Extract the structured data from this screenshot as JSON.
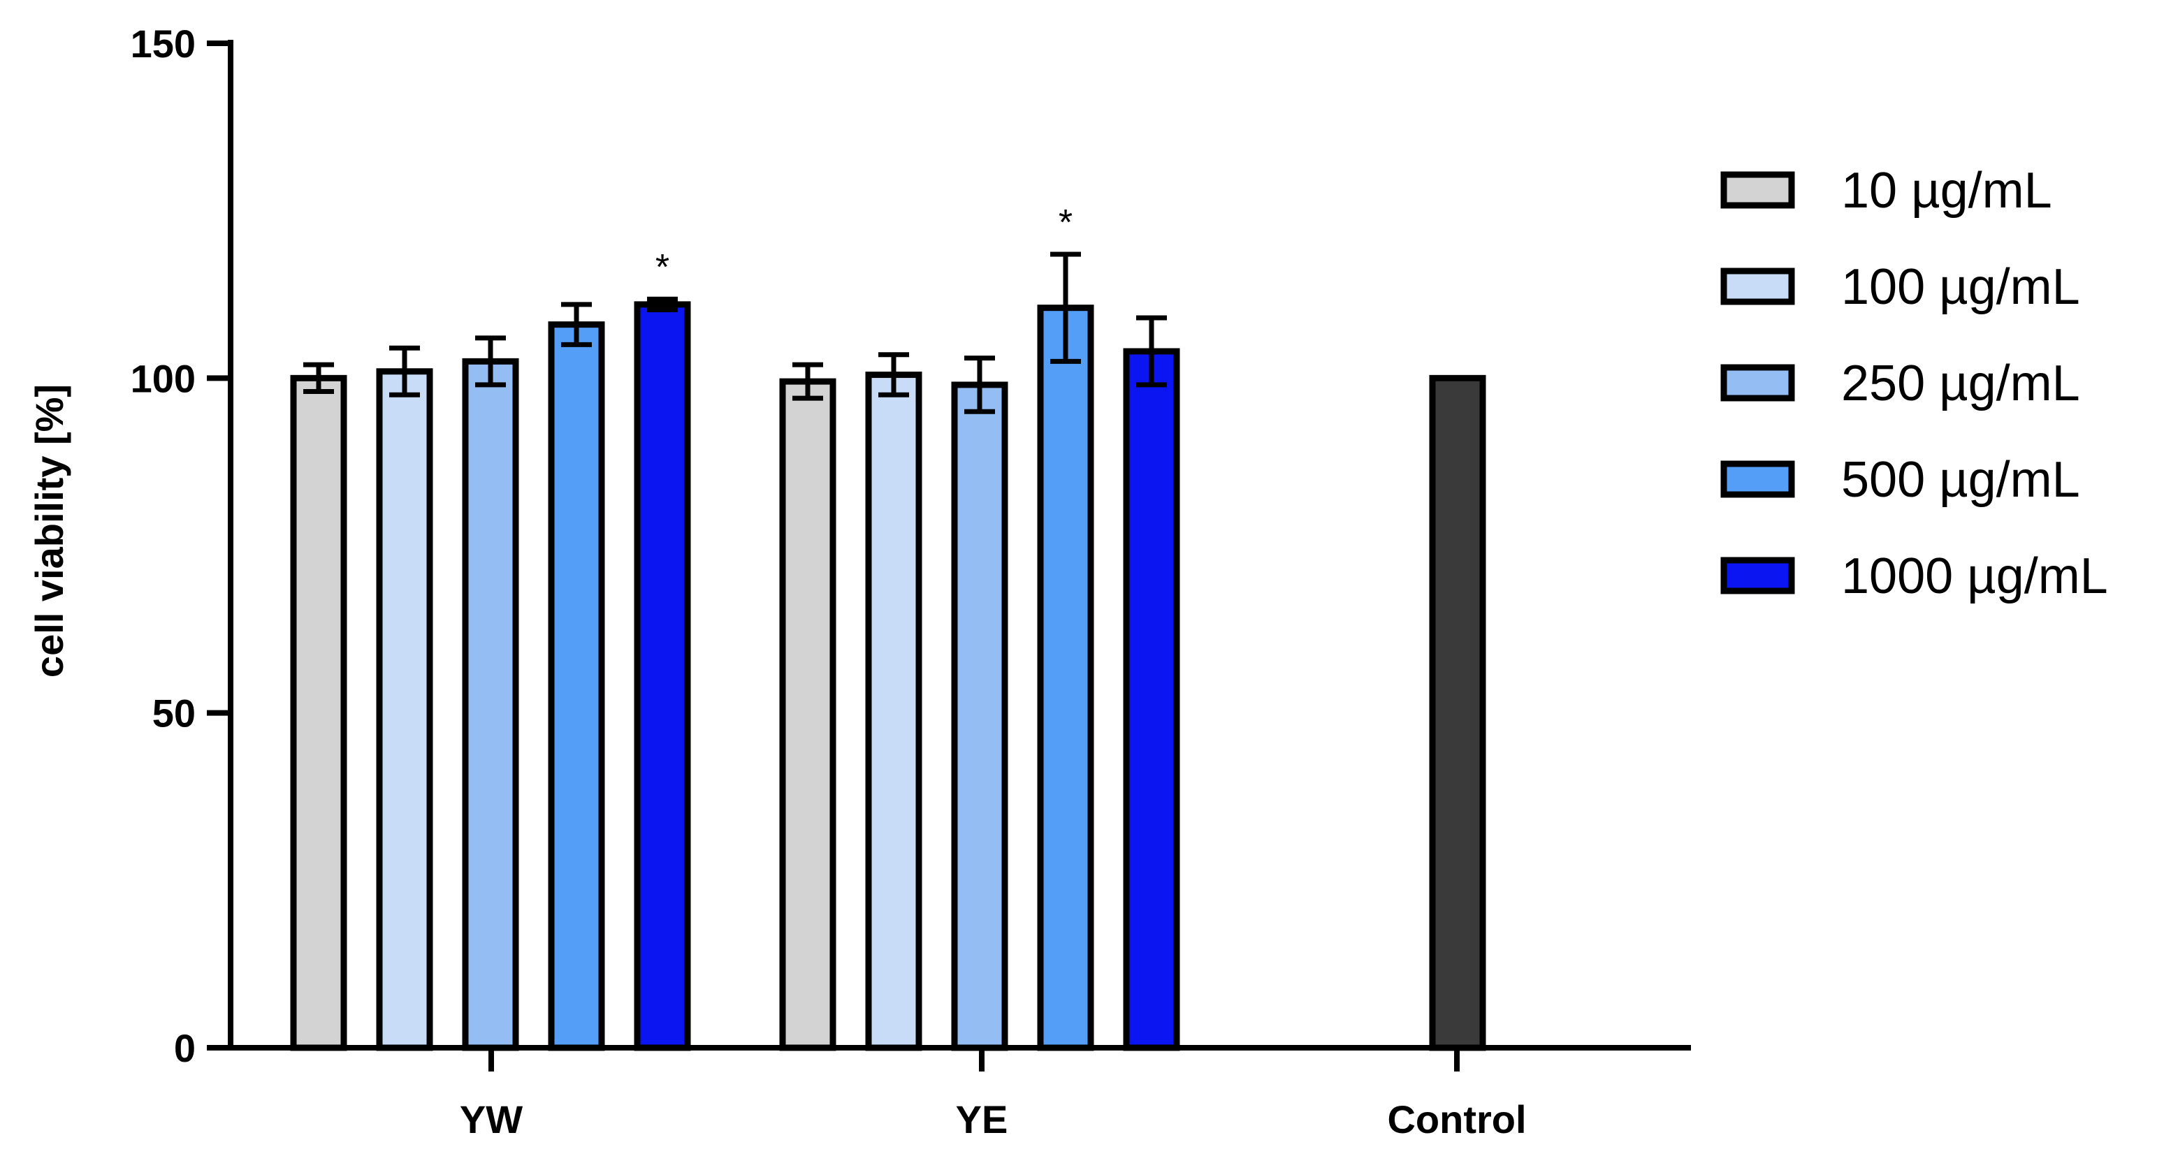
{
  "chart_data": {
    "type": "bar",
    "title": "",
    "xlabel": "",
    "ylabel": "cell viability [%]",
    "ylim": [
      0,
      150
    ],
    "yticks": [
      "0",
      "50",
      "100",
      "150"
    ],
    "categories": [
      "YW",
      "YE",
      "Control"
    ],
    "series": [
      {
        "name": "10 µg/mL",
        "color": "#d3d3d3",
        "values": [
          100,
          99.5,
          null
        ],
        "errors": [
          2,
          2.5,
          null
        ],
        "annotations": [
          "",
          "",
          ""
        ]
      },
      {
        "name": "100 µg/mL",
        "color": "#c9dcf7",
        "values": [
          101,
          100.5,
          null
        ],
        "errors": [
          3.5,
          3,
          null
        ],
        "annotations": [
          "",
          "",
          ""
        ]
      },
      {
        "name": "250 µg/mL",
        "color": "#93bdf3",
        "values": [
          102.5,
          99,
          null
        ],
        "errors": [
          3.5,
          4,
          null
        ],
        "annotations": [
          "",
          "",
          ""
        ]
      },
      {
        "name": "500 µg/mL",
        "color": "#549ef8",
        "values": [
          108,
          110.5,
          null
        ],
        "errors": [
          3,
          8,
          null
        ],
        "annotations": [
          "",
          "*",
          ""
        ]
      },
      {
        "name": "1000 µg/mL",
        "color": "#0a15f2",
        "values": [
          111,
          104,
          null
        ],
        "errors": [
          0.8,
          5,
          null
        ],
        "annotations": [
          "*",
          "",
          ""
        ]
      }
    ],
    "control": {
      "category": "Control",
      "value": 100,
      "color": "#3a3a3a"
    },
    "legend_position": "right"
  }
}
